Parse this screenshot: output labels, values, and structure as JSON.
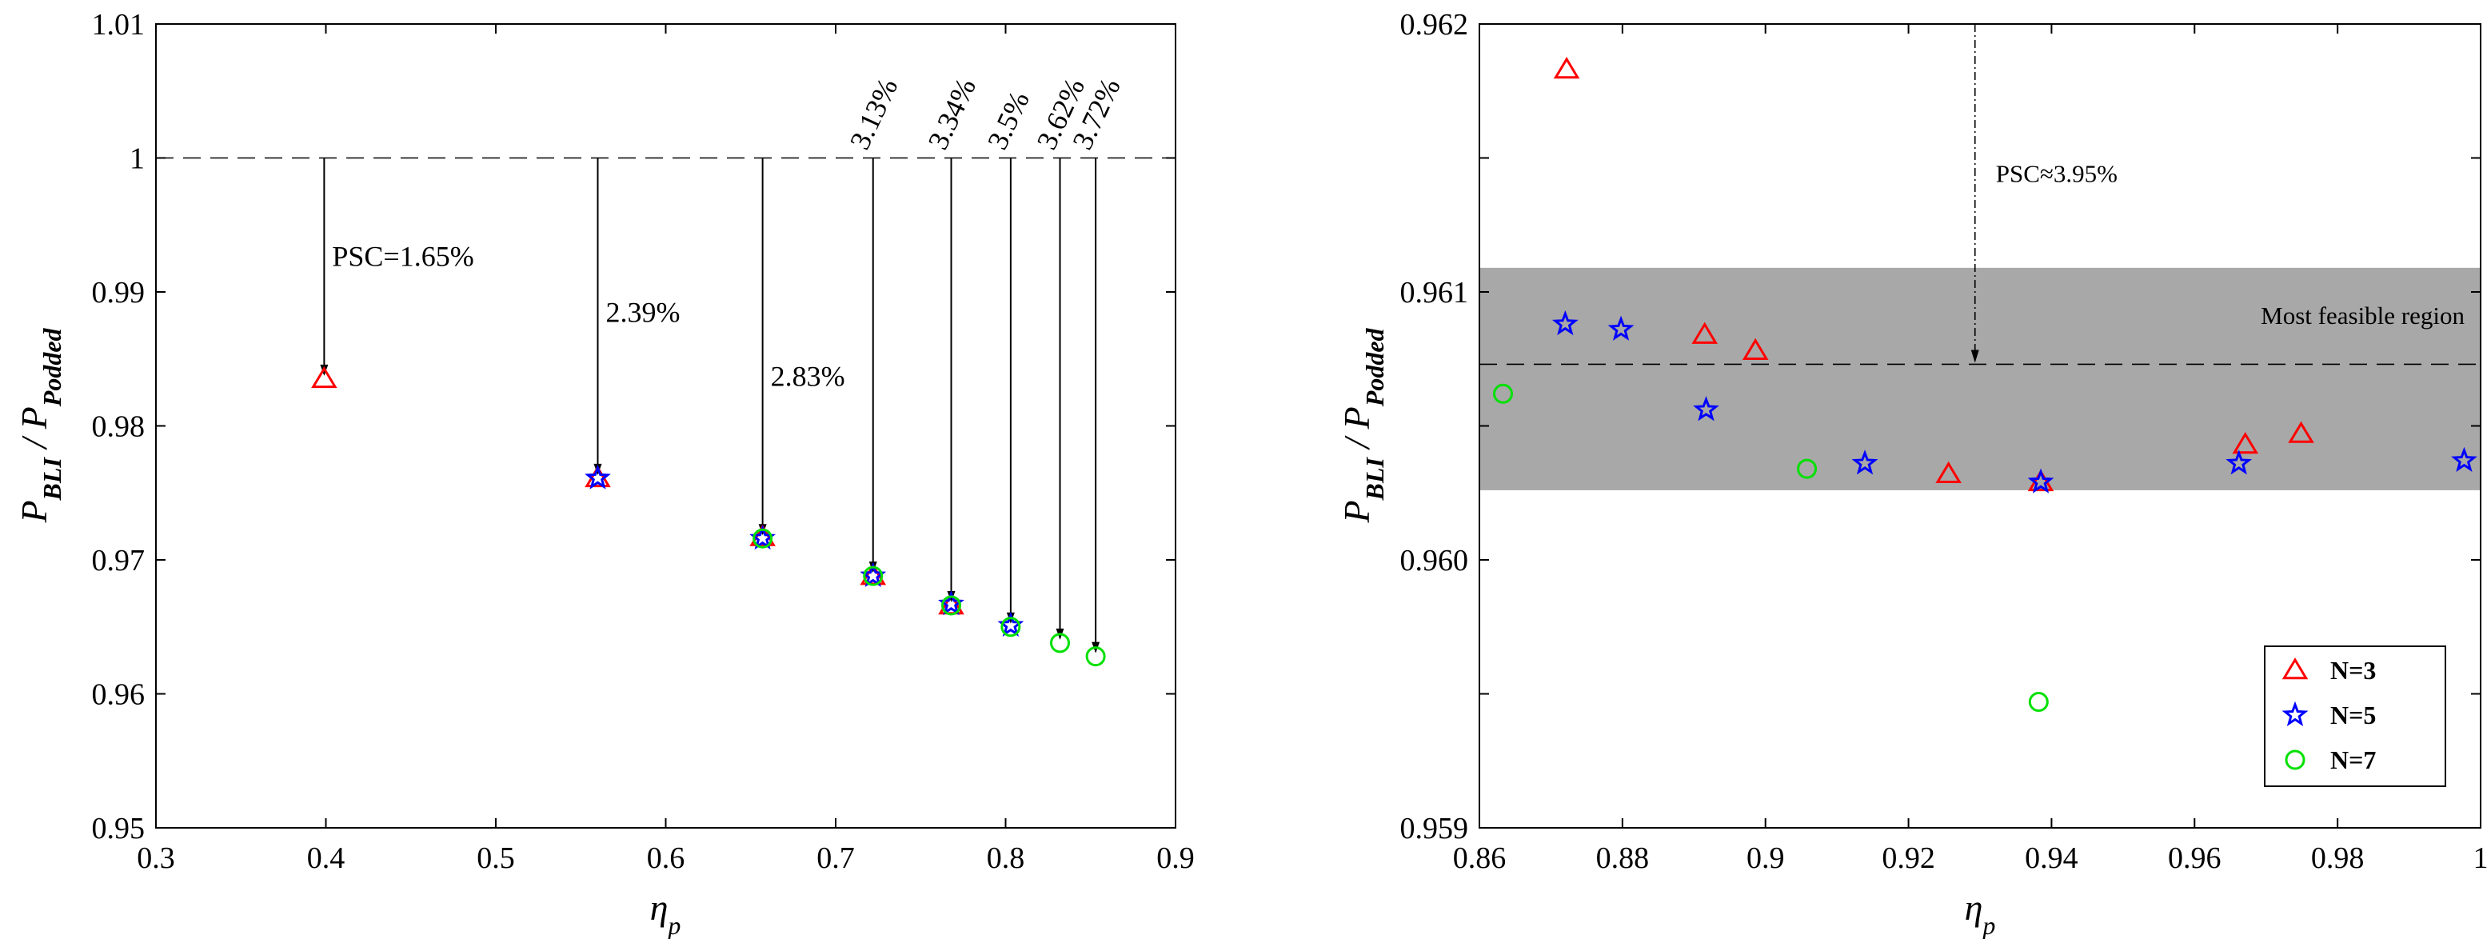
{
  "chart_data": [
    {
      "type": "scatter",
      "panel": "left",
      "xlabel": "η",
      "xlabel_sub": "p",
      "ylabel": "P",
      "ylabel_num_sub": "BLI",
      "ylabel_sep": " / ",
      "ylabel_den": "P",
      "ylabel_den_sub": "Podded",
      "xlim": [
        0.3,
        0.9
      ],
      "ylim": [
        0.95,
        1.01
      ],
      "xticks": [
        "0.3",
        "0.4",
        "0.5",
        "0.6",
        "0.7",
        "0.8",
        "0.9"
      ],
      "yticks": [
        "0.95",
        "0.96",
        "0.97",
        "0.98",
        "0.99",
        "1",
        "1.01"
      ],
      "reference_line": 1.0,
      "series": [
        {
          "name": "N=3",
          "marker": "triangle",
          "color": "#ff0000",
          "x": [
            0.399,
            0.56,
            0.657,
            0.722,
            0.768
          ],
          "y": [
            0.9835,
            0.9761,
            0.9717,
            0.9688,
            0.9666
          ]
        },
        {
          "name": "N=5",
          "marker": "star",
          "color": "#0000ff",
          "x": [
            0.56,
            0.657,
            0.722,
            0.768,
            0.803
          ],
          "y": [
            0.9761,
            0.9716,
            0.9688,
            0.9667,
            0.9651
          ]
        },
        {
          "name": "N=7",
          "marker": "circle",
          "color": "#00e000",
          "x": [
            0.657,
            0.722,
            0.768,
            0.803,
            0.832,
            0.853
          ],
          "y": [
            0.9716,
            0.9688,
            0.9666,
            0.965,
            0.9638,
            0.9628
          ]
        }
      ],
      "annotations": [
        {
          "x": 0.399,
          "y": 0.9835,
          "label": "PSC=1.65%",
          "style": "label-right"
        },
        {
          "x": 0.56,
          "y": 0.9761,
          "label": "2.39%",
          "style": "label-right"
        },
        {
          "x": 0.657,
          "y": 0.9716,
          "label": "2.83%",
          "style": "label-right"
        },
        {
          "x": 0.722,
          "y": 0.9688,
          "label": "3.13%",
          "style": "rotated"
        },
        {
          "x": 0.768,
          "y": 0.9666,
          "label": "3.34%",
          "style": "rotated"
        },
        {
          "x": 0.803,
          "y": 0.965,
          "label": "3.5%",
          "style": "rotated"
        },
        {
          "x": 0.832,
          "y": 0.9638,
          "label": "3.62%",
          "style": "rotated"
        },
        {
          "x": 0.853,
          "y": 0.9628,
          "label": "3.72%",
          "style": "rotated"
        }
      ]
    },
    {
      "type": "scatter",
      "panel": "right",
      "xlabel": "η",
      "xlabel_sub": "p",
      "ylabel": "P",
      "ylabel_num_sub": "BLI",
      "ylabel_sep": " / ",
      "ylabel_den": "P",
      "ylabel_den_sub": "Podded",
      "xlim": [
        0.86,
        1.0
      ],
      "ylim": [
        0.959,
        0.962
      ],
      "xticks": [
        "0.86",
        "0.88",
        "0.9",
        "0.92",
        "0.94",
        "0.96",
        "0.98",
        "1"
      ],
      "yticks": [
        "0.959",
        "0.960",
        "0.961",
        "0.962"
      ],
      "region": {
        "label": "Most feasible region",
        "y_low": 0.96026,
        "y_high": 0.96109
      },
      "reference_line": 0.96073,
      "psc_annotation": {
        "x": 0.9293,
        "y_from": 0.962,
        "y_to": 0.96073,
        "label": "PSC≈3.95%"
      },
      "series": [
        {
          "name": "N=3",
          "marker": "triangle",
          "color": "#ff0000",
          "x": [
            0.8722,
            0.8915,
            0.8986,
            0.9256,
            0.9385,
            0.9671,
            0.9749
          ],
          "y": [
            0.96183,
            0.96084,
            0.96078,
            0.96032,
            0.96029,
            0.96043,
            0.96047
          ]
        },
        {
          "name": "N=5",
          "marker": "star",
          "color": "#0000ff",
          "x": [
            0.872,
            0.8798,
            0.8917,
            0.9139,
            0.9385,
            0.9662,
            0.9977
          ],
          "y": [
            0.96088,
            0.96086,
            0.96056,
            0.96036,
            0.96029,
            0.96036,
            0.96037
          ]
        },
        {
          "name": "N=7",
          "marker": "circle",
          "color": "#00e000",
          "x": [
            0.8633,
            0.9058,
            0.9382
          ],
          "y": [
            0.96062,
            0.96034,
            0.95947
          ]
        }
      ],
      "legend": {
        "location": "bottom-right",
        "entries": [
          "N=3",
          "N=5",
          "N=7"
        ]
      }
    }
  ]
}
